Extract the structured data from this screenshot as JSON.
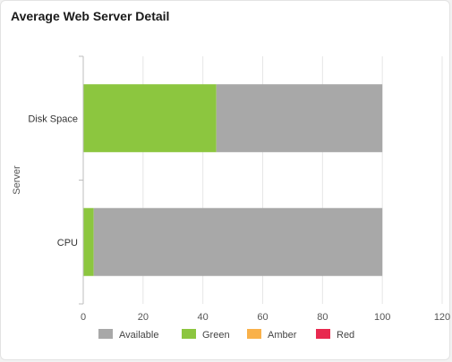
{
  "card": {
    "title": "Average Web Server Detail"
  },
  "chart_data": {
    "type": "bar",
    "orientation": "horizontal",
    "stacked": true,
    "title": "Average Web Server Detail",
    "xlabel": "",
    "ylabel": "Server",
    "categories": [
      "Disk Space",
      "CPU"
    ],
    "series": [
      {
        "name": "Green",
        "color": "#8cc63f",
        "values": [
          44.5,
          3.5
        ]
      },
      {
        "name": "Available",
        "color": "#a8a8a8",
        "values": [
          55.5,
          96.5
        ]
      },
      {
        "name": "Amber",
        "color": "#f9b14a",
        "values": [
          0,
          0
        ]
      },
      {
        "name": "Red",
        "color": "#e8294f",
        "values": [
          0,
          0
        ]
      }
    ],
    "xlim": [
      0,
      120
    ],
    "xticks": [
      0,
      20,
      40,
      60,
      80,
      100,
      120
    ],
    "grid": true,
    "legend": {
      "position": "bottom",
      "order": [
        "Available",
        "Green",
        "Amber",
        "Red"
      ]
    }
  }
}
